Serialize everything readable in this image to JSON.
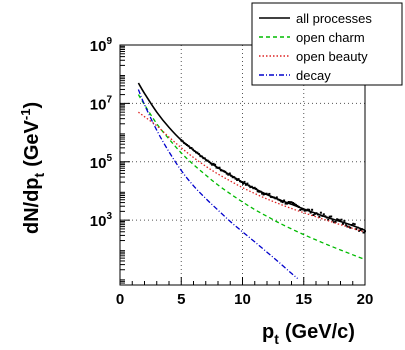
{
  "chart_data": {
    "type": "line",
    "title": "",
    "xlabel": {
      "main": "p",
      "sub": "t",
      "unit": "(GeV/c)"
    },
    "ylabel": {
      "pre": "dN/dp",
      "sub": "t",
      "unit_pre": "(GeV",
      "unit_sup": "-1",
      "unit_post": ")"
    },
    "x_ticks": [
      "0",
      "5",
      "10",
      "15",
      "20"
    ],
    "y_ticks": [
      {
        "value": 1000,
        "base": "10",
        "exp": "3"
      },
      {
        "value": 100000,
        "base": "10",
        "exp": "5"
      },
      {
        "value": 10000000,
        "base": "10",
        "exp": "7"
      },
      {
        "value": 1000000000,
        "base": "10",
        "exp": "9"
      }
    ],
    "xlim": [
      0,
      20
    ],
    "ylim": [
      6,
      1000000000
    ],
    "y_scale": "log",
    "grid": true,
    "legend_position": "top-right",
    "series": [
      {
        "name": "all processes",
        "color": "#000000",
        "style": "solid",
        "x": [
          1.5,
          2,
          3,
          4,
          5,
          6,
          7,
          8,
          9,
          10,
          11,
          12,
          13,
          14,
          15,
          16,
          17,
          18,
          19,
          20
        ],
        "y": [
          50000000,
          22000000,
          5000000,
          1500000,
          550000,
          250000,
          120000,
          62000,
          35000,
          20000,
          12000,
          7500,
          5000,
          3500,
          2400,
          1700,
          1200,
          900,
          650,
          450
        ]
      },
      {
        "name": "open charm",
        "color": "#00bb00",
        "style": "dashed",
        "x": [
          1.5,
          2,
          3,
          4,
          5,
          6,
          7,
          8,
          9,
          10,
          11,
          12,
          13,
          14,
          15,
          16,
          17,
          18,
          19,
          20
        ],
        "y": [
          20000000,
          9000000,
          2000000,
          600000,
          200000,
          80000,
          35000,
          16000,
          8000,
          4200,
          2300,
          1350,
          800,
          500,
          320,
          210,
          140,
          95,
          65,
          45
        ]
      },
      {
        "name": "open beauty",
        "color": "#dd2222",
        "style": "dotted",
        "x": [
          1.5,
          2,
          3,
          4,
          5,
          6,
          7,
          8,
          9,
          10,
          11,
          12,
          13,
          14,
          15,
          16,
          17,
          18,
          19,
          20
        ],
        "y": [
          5000000,
          3500000,
          1700000,
          700000,
          300000,
          140000,
          70000,
          38000,
          22000,
          13000,
          8200,
          5300,
          3600,
          2500,
          1800,
          1300,
          950,
          700,
          520,
          390
        ]
      },
      {
        "name": "decay",
        "color": "#0000cc",
        "style": "dashdot",
        "x": [
          1.5,
          2,
          3,
          4,
          5,
          6,
          7,
          8,
          9,
          10,
          11,
          12,
          13,
          14,
          14.5
        ],
        "y": [
          30000000,
          9000000,
          1200000,
          220000,
          50000,
          15000,
          5500,
          2200,
          900,
          400,
          180,
          80,
          35,
          15,
          10
        ]
      }
    ]
  }
}
